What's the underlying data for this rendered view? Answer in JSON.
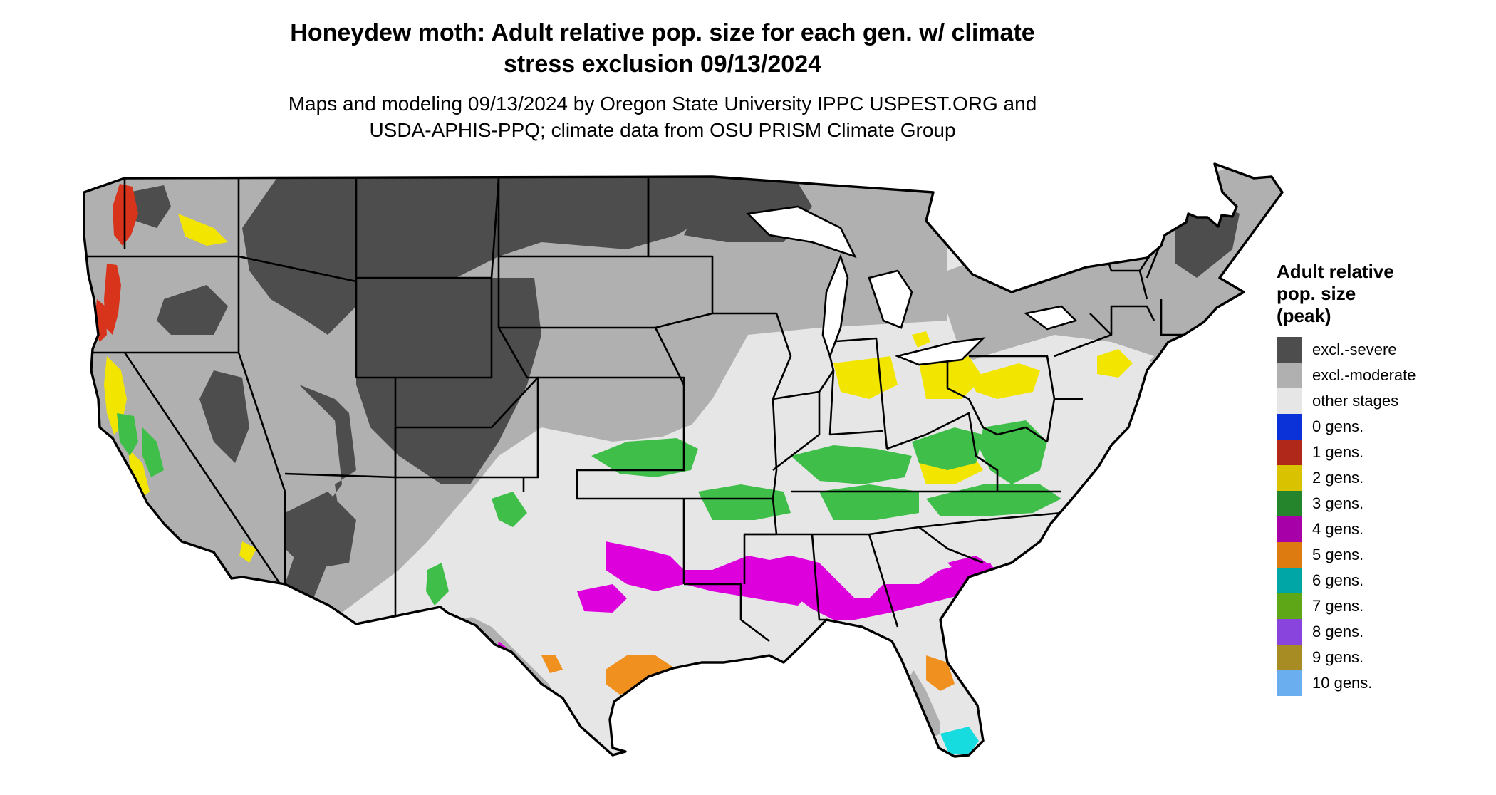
{
  "title": {
    "line1": "Honeydew moth: Adult relative pop. size for each gen. w/ climate",
    "line2": "stress exclusion 09/13/2024"
  },
  "subtitle": {
    "line1": "Maps and modeling 09/13/2024 by Oregon State University IPPC USPEST.ORG and",
    "line2": "USDA-APHIS-PPQ; climate data from OSU PRISM Climate Group"
  },
  "legend": {
    "title_line1": "Adult relative",
    "title_line2": "pop. size",
    "title_line3": "(peak)",
    "items": [
      {
        "label": "excl.-severe",
        "color": "#4d4d4d"
      },
      {
        "label": "excl.-moderate",
        "color": "#b0b0b0"
      },
      {
        "label": "other stages",
        "color": "#e6e6e6"
      },
      {
        "label": "0 gens.",
        "color": "#0a32d8"
      },
      {
        "label": "1 gens.",
        "color": "#b0281a"
      },
      {
        "label": "2 gens.",
        "color": "#d9c300"
      },
      {
        "label": "3 gens.",
        "color": "#24852c"
      },
      {
        "label": "4 gens.",
        "color": "#a800a8"
      },
      {
        "label": "5 gens.",
        "color": "#dd7a10"
      },
      {
        "label": "6 gens.",
        "color": "#00a6a6"
      },
      {
        "label": "7 gens.",
        "color": "#5ea818"
      },
      {
        "label": "8 gens.",
        "color": "#8844dd"
      },
      {
        "label": "9 gens.",
        "color": "#a68c22"
      },
      {
        "label": "10 gens.",
        "color": "#6aaef0"
      }
    ]
  },
  "map": {
    "region": "contiguous United States",
    "colors": {
      "excl_severe": "#4d4d4d",
      "excl_moderate": "#b0b0b0",
      "other_stages": "#e6e6e6",
      "gen1": "#d8341c",
      "gen2": "#f2e600",
      "gen3": "#3fbf4a",
      "gen4": "#dd00dd",
      "gen5": "#f0901e",
      "gen6": "#16dce0",
      "state_border": "#000000"
    }
  }
}
